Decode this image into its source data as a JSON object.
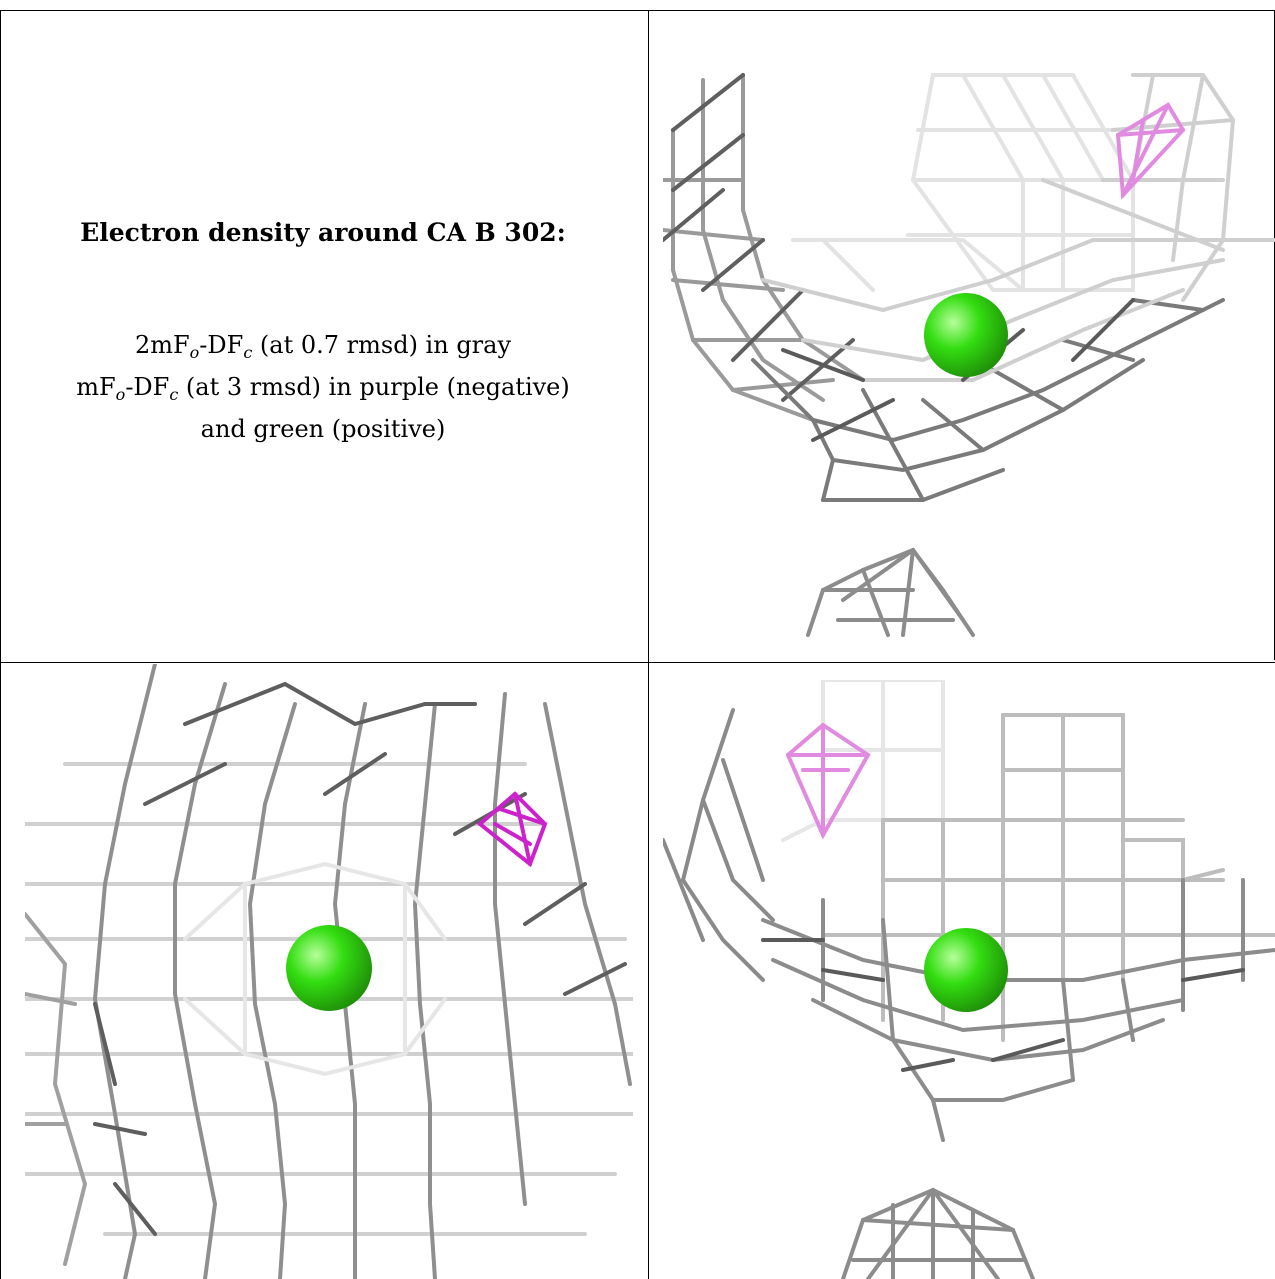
{
  "title": "Electron density around CA B 302:",
  "legend": {
    "line1": {
      "a": "2mF",
      "a_sub": "o",
      "b": "-DF",
      "b_sub": "c",
      "rest": " (at 0.7 rmsd) in gray"
    },
    "line2": {
      "a": "mF",
      "a_sub": "o",
      "b": "-DF",
      "b_sub": "c",
      "rest": " (at 3 rmsd) in purple (negative)"
    },
    "line3": "and green (positive)"
  },
  "colors": {
    "mesh_gray": "#8a8a8a",
    "mesh_light": "#d6d6d6",
    "negative_purple": "#cc22cc",
    "negative_purple_light": "#e08be0",
    "ion_green": "#33dd11"
  },
  "views": [
    {
      "name": "view-top-right",
      "ion": "CA B 302"
    },
    {
      "name": "view-bottom-left",
      "ion": "CA B 302"
    },
    {
      "name": "view-bottom-right",
      "ion": "CA B 302"
    }
  ]
}
